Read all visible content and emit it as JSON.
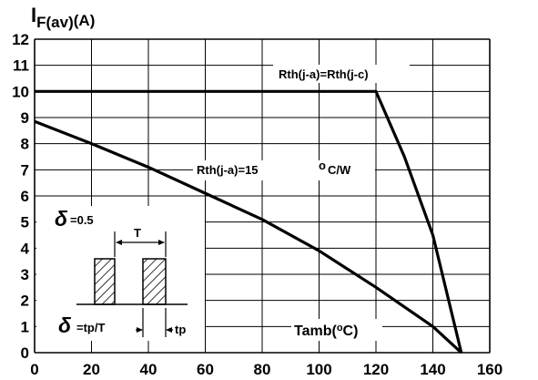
{
  "chart_data": {
    "type": "line",
    "ylabel": {
      "main": "I",
      "sub": "F(av)",
      "unit": "(A)"
    },
    "xlim": [
      0,
      160
    ],
    "ylim": [
      0,
      12
    ],
    "x_ticks": [
      0,
      20,
      40,
      60,
      80,
      100,
      120,
      140,
      160
    ],
    "y_ticks": [
      0,
      1,
      2,
      3,
      4,
      5,
      6,
      7,
      8,
      9,
      10,
      11,
      12
    ],
    "grid": true,
    "series": [
      {
        "label": "Rth(j-a)=Rth(j-c)",
        "x": [
          0,
          120,
          130,
          140,
          150
        ],
        "y": [
          10,
          10,
          7.5,
          4.5,
          0
        ]
      },
      {
        "label": "Rth(j-a)=15",
        "label_unit_o": "o",
        "label_unit": "C/W",
        "x": [
          0,
          20,
          40,
          60,
          80,
          100,
          120,
          140,
          150
        ],
        "y": [
          8.85,
          8.0,
          7.1,
          6.1,
          5.1,
          3.9,
          2.5,
          1.0,
          0
        ]
      }
    ],
    "inset": {
      "delta_symbol": "δ",
      "delta_value": "=0.5",
      "period_label": "T",
      "formula": "=tp/T",
      "pulse_label": "tp"
    },
    "x_axis_label": {
      "main": "Tamb(",
      "o": "o",
      "end": "C)"
    }
  }
}
